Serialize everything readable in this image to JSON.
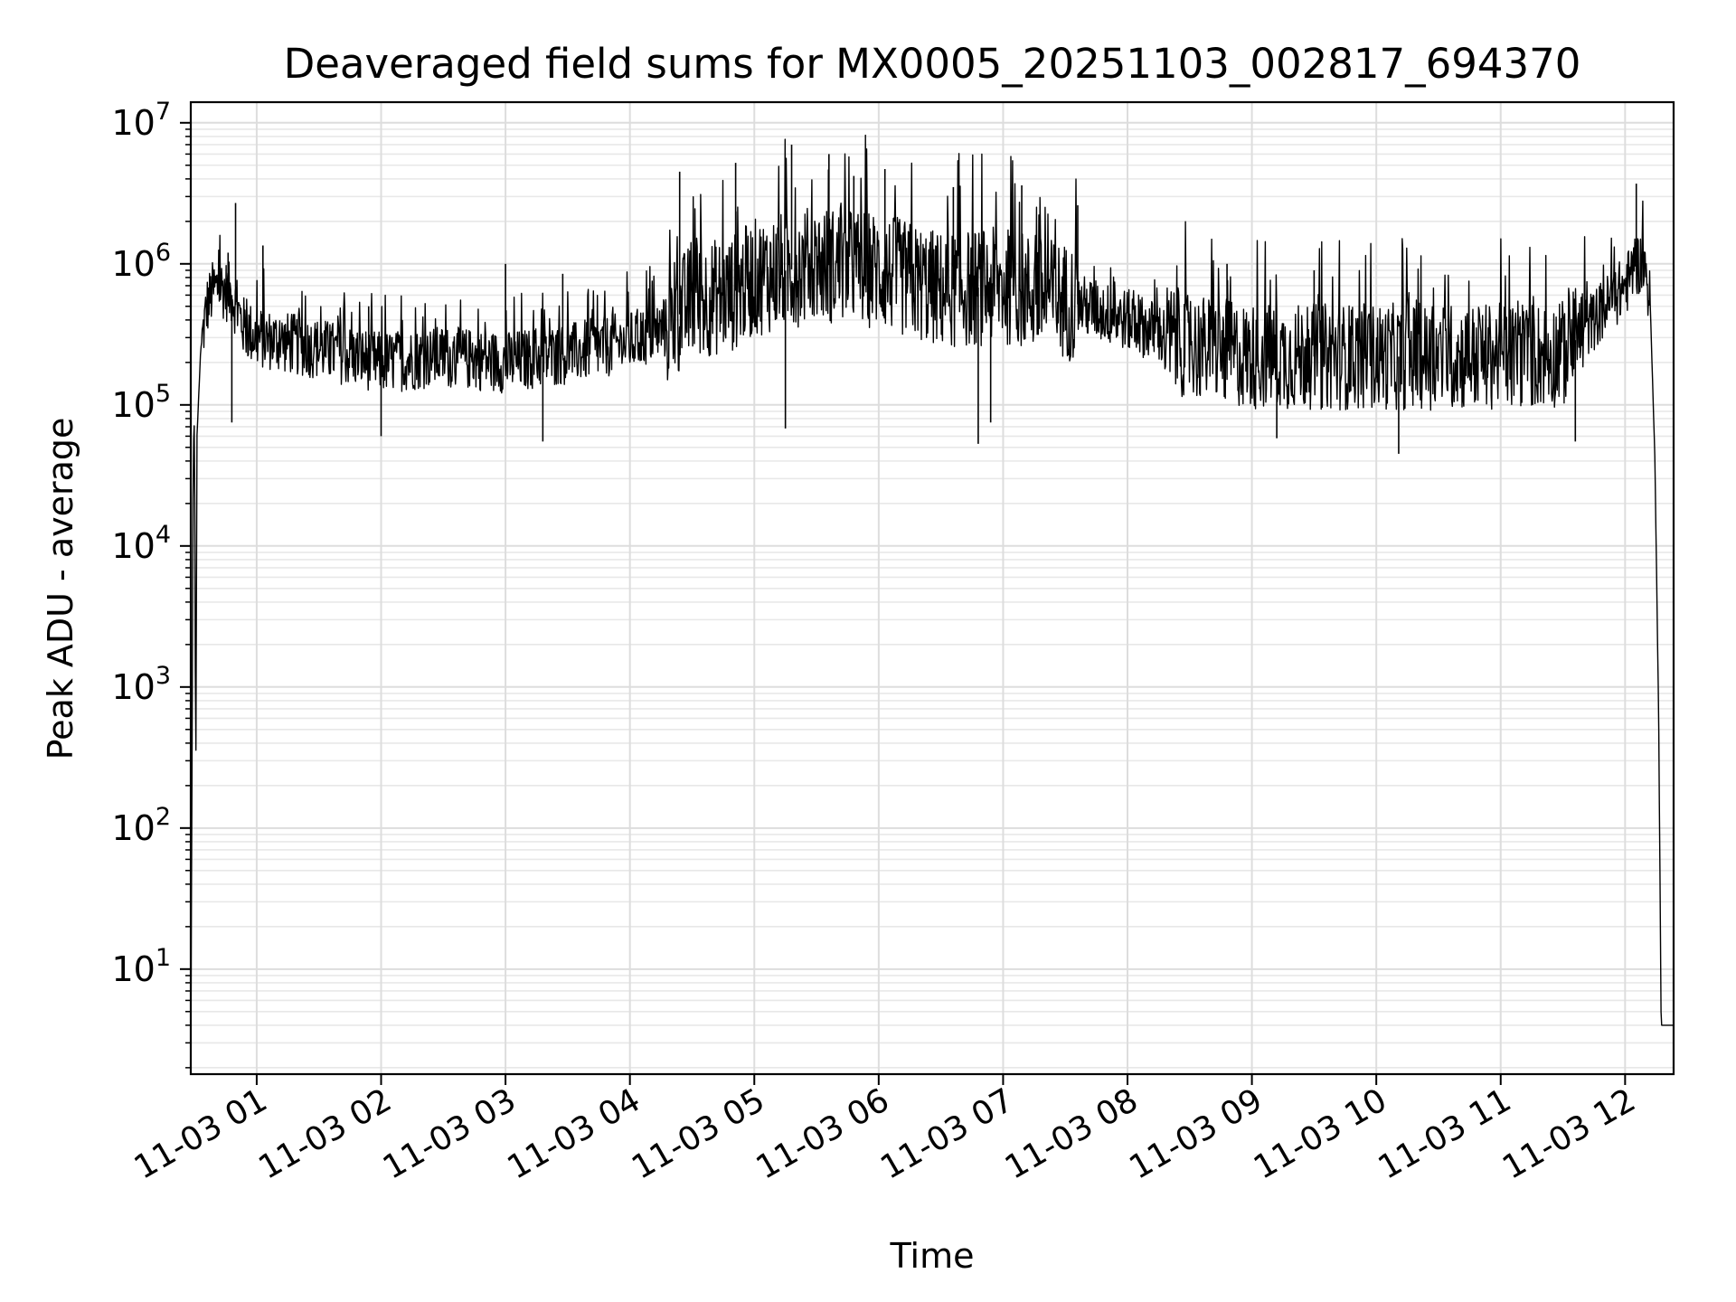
{
  "colors": {
    "background": "#ffffff",
    "line": "#000000",
    "grid_major": "#dddddd",
    "grid_minor": "#e8e8e8",
    "axes": "#000000"
  },
  "chart_data": {
    "type": "line",
    "title": "Deaveraged field sums for MX0005_20251103_002817_694370",
    "xlabel": "Time",
    "ylabel": "Peak ADU - average",
    "yscale": "log",
    "ylim": [
      1.8,
      14000000
    ],
    "xlim_hours": [
      0.47,
      12.39
    ],
    "grid": true,
    "x_ticks": [
      {
        "label": "11-03 01",
        "hour": 1
      },
      {
        "label": "11-03 02",
        "hour": 2
      },
      {
        "label": "11-03 03",
        "hour": 3
      },
      {
        "label": "11-03 04",
        "hour": 4
      },
      {
        "label": "11-03 05",
        "hour": 5
      },
      {
        "label": "11-03 06",
        "hour": 6
      },
      {
        "label": "11-03 07",
        "hour": 7
      },
      {
        "label": "11-03 08",
        "hour": 8
      },
      {
        "label": "11-03 09",
        "hour": 9
      },
      {
        "label": "11-03 10",
        "hour": 10
      },
      {
        "label": "11-03 11",
        "hour": 11
      },
      {
        "label": "11-03 12",
        "hour": 12
      }
    ],
    "y_ticks": [
      {
        "base": "10",
        "exp": "1",
        "value": 10
      },
      {
        "base": "10",
        "exp": "2",
        "value": 100
      },
      {
        "base": "10",
        "exp": "3",
        "value": 1000
      },
      {
        "base": "10",
        "exp": "4",
        "value": 10000
      },
      {
        "base": "10",
        "exp": "5",
        "value": 100000
      },
      {
        "base": "10",
        "exp": "6",
        "value": 1000000
      },
      {
        "base": "10",
        "exp": "7",
        "value": 10000000
      }
    ],
    "series": [
      {
        "name": "Deaveraged field sum",
        "envelope": [
          [
            0.47,
            2
          ],
          [
            0.49,
            50000
          ],
          [
            0.5,
            80000
          ],
          [
            0.51,
            170
          ],
          [
            0.52,
            60000
          ],
          [
            0.55,
            250000
          ],
          [
            0.6,
            500000
          ],
          [
            0.65,
            650000
          ],
          [
            0.7,
            700000
          ],
          [
            0.8,
            600000
          ],
          [
            0.9,
            350000
          ],
          [
            1.0,
            300000
          ],
          [
            1.5,
            250000
          ],
          [
            2.0,
            200000
          ],
          [
            2.5,
            220000
          ],
          [
            3.0,
            200000
          ],
          [
            3.5,
            230000
          ],
          [
            4.0,
            280000
          ],
          [
            4.3,
            350000
          ],
          [
            4.5,
            550000
          ],
          [
            4.8,
            600000
          ],
          [
            5.0,
            800000
          ],
          [
            5.5,
            1000000
          ],
          [
            6.0,
            900000
          ],
          [
            6.5,
            650000
          ],
          [
            7.0,
            700000
          ],
          [
            7.5,
            550000
          ],
          [
            8.0,
            400000
          ],
          [
            8.5,
            260000
          ],
          [
            9.0,
            220000
          ],
          [
            9.5,
            220000
          ],
          [
            10.0,
            220000
          ],
          [
            10.5,
            220000
          ],
          [
            11.0,
            220000
          ],
          [
            11.5,
            230000
          ],
          [
            11.8,
            450000
          ],
          [
            12.0,
            700000
          ],
          [
            12.1,
            1000000
          ],
          [
            12.15,
            1000000
          ],
          [
            12.2,
            600000
          ],
          [
            12.24,
            40000
          ],
          [
            12.27,
            600
          ],
          [
            12.29,
            4
          ],
          [
            12.39,
            4
          ]
        ],
        "spikes": [
          [
            0.77,
            1200000
          ],
          [
            0.83,
            2700000
          ],
          [
            1.05,
            1350000
          ],
          [
            1.9,
            500000
          ],
          [
            3.0,
            1000000
          ],
          [
            3.46,
            850000
          ],
          [
            4.4,
            4500000
          ],
          [
            4.85,
            5200000
          ],
          [
            5.3,
            7000000
          ],
          [
            5.6,
            6000000
          ],
          [
            5.8,
            4200000
          ],
          [
            6.05,
            4700000
          ],
          [
            6.6,
            3500000
          ],
          [
            7.15,
            3600000
          ],
          [
            7.6,
            2600000
          ],
          [
            8.8,
            1000000
          ],
          [
            9.5,
            900000
          ],
          [
            12.09,
            3700000
          ]
        ],
        "dips": [
          [
            0.8,
            75000
          ],
          [
            2.0,
            60000
          ],
          [
            3.3,
            55000
          ],
          [
            5.25,
            68000
          ],
          [
            6.8,
            53000
          ],
          [
            6.9,
            75000
          ],
          [
            9.2,
            58000
          ],
          [
            10.18,
            45000
          ],
          [
            11.6,
            55000
          ]
        ]
      }
    ]
  }
}
